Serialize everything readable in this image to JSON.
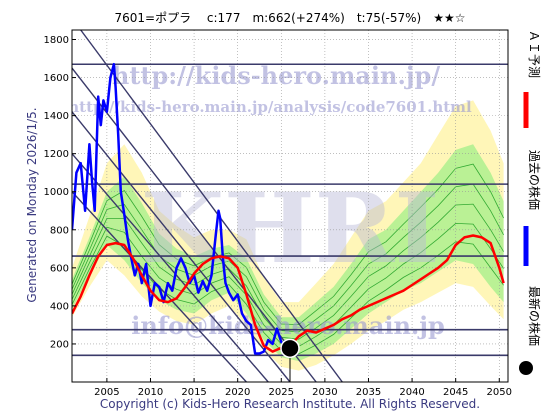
{
  "header": {
    "title": "7601=ポプラ　 c:177　m:662(+274%)　t:75(-57%)　★★☆"
  },
  "side_note": "Generated on Monday 2026/1/5.",
  "footer": "Copyright (c) Kids-Hero Research Institute. All Rights Reserved.",
  "watermarks": {
    "url_main": "http://kids-hero.main.jp/",
    "url_analysis": "http://kids-hero.main.jp/analysis/code7601.html",
    "email": "info@kids-hero.main.jp",
    "big_logo": "KHRI"
  },
  "legend": [
    {
      "label": "ＡＩ予測",
      "color": "#ff0000"
    },
    {
      "label": "過去の株価",
      "color": "#0000ff"
    },
    {
      "label": "最新の株価",
      "color": "#000000"
    }
  ],
  "colors": {
    "price": "#0000ff",
    "prediction": "#ff0000",
    "band_outer": "#fff5b0",
    "band_inner": "#aef08e",
    "band_lines": "#33aa33",
    "horizontal_lines": "#3a3a6a",
    "diagonal_lines": "#3a3a6a"
  },
  "chart_data": {
    "type": "line",
    "xlim": [
      2001,
      2051
    ],
    "ylim": [
      0,
      1850
    ],
    "x_ticks": [
      2005,
      2010,
      2015,
      2020,
      2025,
      2030,
      2035,
      2040,
      2045,
      2050
    ],
    "y_ticks": [
      200,
      400,
      600,
      800,
      1000,
      1200,
      1400,
      1600,
      1800
    ],
    "horizontal_levels": [
      140,
      275,
      662,
      1040,
      1670
    ],
    "diagonal_lines": [
      [
        [
          2002,
          1850
        ],
        [
          2032,
          0
        ]
      ],
      [
        [
          2001,
          1650
        ],
        [
          2029,
          0
        ]
      ],
      [
        [
          2001,
          1420
        ],
        [
          2026,
          0
        ]
      ],
      [
        [
          2001,
          1200
        ],
        [
          2023.5,
          0
        ]
      ],
      [
        [
          2001,
          1000
        ],
        [
          2021,
          0
        ]
      ]
    ],
    "latest": {
      "x": 2026.0,
      "y": 177
    },
    "band": {
      "x": [
        2001,
        2003,
        2005,
        2007,
        2009,
        2011,
        2013,
        2015,
        2017,
        2019,
        2021,
        2023,
        2025,
        2027,
        2029,
        2031,
        2033,
        2035,
        2037,
        2039,
        2041,
        2043,
        2045,
        2047,
        2049,
        2050.5
      ],
      "outer_upper": [
        600,
        870,
        1150,
        1250,
        1100,
        900,
        820,
        760,
        800,
        800,
        750,
        550,
        420,
        420,
        520,
        620,
        760,
        900,
        950,
        1050,
        1150,
        1300,
        1450,
        1480,
        1320,
        1150
      ],
      "inner_upper": [
        540,
        760,
        1000,
        1080,
        940,
        780,
        700,
        660,
        700,
        720,
        650,
        460,
        340,
        340,
        420,
        500,
        620,
        750,
        800,
        900,
        1000,
        1100,
        1220,
        1250,
        1100,
        950
      ],
      "inner_lower": [
        380,
        560,
        720,
        640,
        520,
        430,
        380,
        360,
        430,
        470,
        360,
        220,
        130,
        110,
        150,
        200,
        280,
        360,
        420,
        480,
        520,
        580,
        640,
        620,
        500,
        420
      ],
      "outer_lower": [
        340,
        500,
        640,
        560,
        450,
        370,
        320,
        300,
        360,
        400,
        300,
        170,
        80,
        60,
        90,
        140,
        200,
        270,
        320,
        380,
        420,
        470,
        520,
        500,
        400,
        330
      ]
    },
    "series": [
      {
        "name": "過去の株価",
        "x": [
          2001.0,
          2001.5,
          2002.0,
          2002.5,
          2003.0,
          2003.3,
          2003.6,
          2004.0,
          2004.3,
          2004.6,
          2005.0,
          2005.4,
          2005.8,
          2006.0,
          2006.3,
          2006.6,
          2007.0,
          2007.4,
          2007.8,
          2008.2,
          2008.6,
          2009.0,
          2009.5,
          2010.0,
          2010.5,
          2011.0,
          2011.5,
          2012.0,
          2012.5,
          2013.0,
          2013.5,
          2014.0,
          2014.5,
          2015.0,
          2015.5,
          2016.0,
          2016.5,
          2017.0,
          2017.5,
          2017.8,
          2018.0,
          2018.3,
          2018.6,
          2019.0,
          2019.5,
          2020.0,
          2020.5,
          2021.0,
          2021.5,
          2022.0,
          2022.5,
          2023.0,
          2023.5,
          2024.0,
          2024.5,
          2025.0,
          2025.5,
          2026.0
        ],
        "y": [
          800,
          1100,
          1150,
          900,
          1250,
          1050,
          900,
          1500,
          1350,
          1480,
          1420,
          1600,
          1670,
          1550,
          1300,
          1000,
          880,
          750,
          650,
          560,
          620,
          520,
          620,
          400,
          520,
          500,
          420,
          520,
          480,
          600,
          650,
          600,
          520,
          560,
          470,
          530,
          480,
          560,
          780,
          900,
          860,
          650,
          520,
          470,
          430,
          460,
          360,
          320,
          300,
          150,
          150,
          160,
          220,
          200,
          280,
          210,
          190,
          177
        ]
      },
      {
        "name": "ＡＩ予測",
        "x": [
          2001.0,
          2002.0,
          2003.0,
          2004.0,
          2005.0,
          2006.0,
          2007.0,
          2008.0,
          2009.0,
          2010.0,
          2011.0,
          2012.0,
          2013.0,
          2014.0,
          2015.0,
          2016.0,
          2017.0,
          2018.0,
          2019.0,
          2020.0,
          2021.0,
          2022.0,
          2023.0,
          2024.0,
          2025.0,
          2026.0,
          2027.0,
          2028.0,
          2029.0,
          2030.0,
          2031.0,
          2032.0,
          2033.0,
          2034.0,
          2035.0,
          2036.0,
          2037.0,
          2038.0,
          2039.0,
          2040.0,
          2041.0,
          2042.0,
          2043.0,
          2044.0,
          2045.0,
          2046.0,
          2047.0,
          2048.0,
          2049.0,
          2050.0,
          2050.5
        ],
        "y": [
          360,
          450,
          560,
          660,
          720,
          730,
          720,
          650,
          560,
          480,
          430,
          420,
          440,
          500,
          570,
          620,
          650,
          660,
          650,
          600,
          460,
          300,
          190,
          160,
          180,
          190,
          240,
          270,
          260,
          280,
          300,
          330,
          350,
          380,
          400,
          420,
          440,
          460,
          480,
          510,
          540,
          570,
          600,
          640,
          720,
          760,
          770,
          760,
          730,
          600,
          520
        ]
      }
    ]
  }
}
